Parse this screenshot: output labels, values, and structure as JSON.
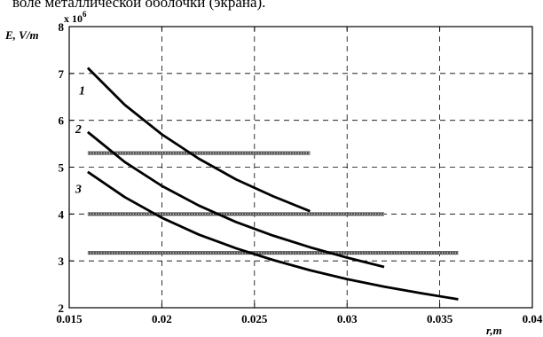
{
  "caption": "воле металлической оболочки (экрана).",
  "chart_data": {
    "type": "line",
    "ylabel": "E, V/m",
    "xlabel": "r,m",
    "y_multiplier": "x 10",
    "y_multiplier_exp": "6",
    "xlim": [
      0.015,
      0.04
    ],
    "ylim": [
      2,
      8
    ],
    "grid": true,
    "x_ticks": [
      0.015,
      0.02,
      0.025,
      0.03,
      0.035,
      0.04
    ],
    "x_tick_labels": [
      "0.015",
      "0.02",
      "0.025",
      "0.03",
      "0.035",
      "0.04"
    ],
    "y_ticks": [
      2,
      3,
      4,
      5,
      6,
      7,
      8
    ],
    "y_tick_labels": [
      "2",
      "3",
      "4",
      "5",
      "6",
      "7",
      "8"
    ],
    "series": [
      {
        "name": "1",
        "x": [
          0.016,
          0.018,
          0.02,
          0.022,
          0.024,
          0.026,
          0.028
        ],
        "y": [
          7.12,
          6.33,
          5.7,
          5.18,
          4.74,
          4.38,
          4.06
        ]
      },
      {
        "name": "2",
        "x": [
          0.016,
          0.018,
          0.02,
          0.022,
          0.024,
          0.026,
          0.028,
          0.03,
          0.032
        ],
        "y": [
          5.75,
          5.11,
          4.6,
          4.18,
          3.83,
          3.54,
          3.29,
          3.07,
          2.87
        ]
      },
      {
        "name": "3",
        "x": [
          0.016,
          0.018,
          0.02,
          0.022,
          0.024,
          0.026,
          0.028,
          0.03,
          0.032,
          0.034,
          0.036
        ],
        "y": [
          4.9,
          4.36,
          3.92,
          3.56,
          3.27,
          3.02,
          2.8,
          2.61,
          2.45,
          2.31,
          2.18
        ]
      }
    ],
    "horizontal_lines": [
      {
        "y": 5.3,
        "x_start": 0.016,
        "x_end": 0.028
      },
      {
        "y": 4.0,
        "x_start": 0.016,
        "x_end": 0.032
      },
      {
        "y": 3.17,
        "x_start": 0.016,
        "x_end": 0.036
      }
    ],
    "curve_label_positions": [
      {
        "label": "1",
        "x": 0.0162,
        "y": 6.65
      },
      {
        "label": "2",
        "x": 0.016,
        "y": 5.82
      },
      {
        "label": "3",
        "x": 0.016,
        "y": 4.55
      }
    ]
  }
}
